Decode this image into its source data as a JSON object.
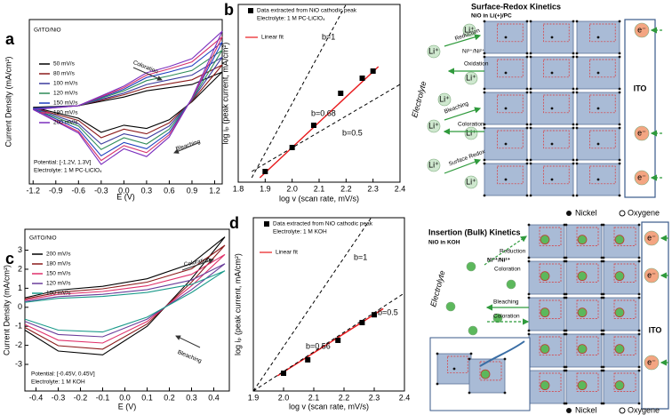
{
  "chart_data": [
    {
      "type": "line",
      "panel_label": "a",
      "xlabel": "E (V)",
      "ylabel": "Current Density (mA/cm²)",
      "xlim": [
        -1.25,
        1.3
      ],
      "xticks": [
        -1.2,
        -0.9,
        -0.6,
        -0.3,
        {
          "value": 0,
          "label": "0.0"
        },
        0.3,
        0.6,
        0.9,
        1.2
      ],
      "ylim": [
        -1,
        1.1
      ],
      "x": [
        -1.2,
        -0.6,
        0,
        0.3,
        0.6,
        0.9,
        1.3,
        0.9,
        0.6,
        0.3,
        0,
        -0.3,
        -0.6,
        -1.2
      ],
      "series": [
        {
          "name": "50 mV/s",
          "color": "#000000",
          "values": [
            -0.02,
            0,
            0.11,
            0.19,
            0.23,
            0.27,
            0.43,
            0.05,
            -0.18,
            -0.29,
            -0.25,
            -0.34,
            -0.16,
            -0.02
          ]
        },
        {
          "name": "80 mV/s",
          "color": "#8b1a1a",
          "values": [
            -0.03,
            0,
            0.14,
            0.23,
            0.28,
            0.33,
            0.52,
            0.06,
            -0.22,
            -0.36,
            -0.3,
            -0.41,
            -0.19,
            -0.03
          ]
        },
        {
          "name": "100 mV/s",
          "color": "#3b3b9e",
          "values": [
            -0.03,
            0,
            0.16,
            0.27,
            0.33,
            0.39,
            0.62,
            0.07,
            -0.26,
            -0.42,
            -0.36,
            -0.49,
            -0.23,
            -0.03
          ]
        },
        {
          "name": "120 mV/s",
          "color": "#2e8b57",
          "values": [
            -0.04,
            0,
            0.19,
            0.32,
            0.38,
            0.45,
            0.71,
            0.08,
            -0.3,
            -0.49,
            -0.41,
            -0.56,
            -0.26,
            -0.04
          ]
        },
        {
          "name": "150 mV/s",
          "color": "#1f3fbf",
          "values": [
            -0.04,
            0,
            0.21,
            0.36,
            0.43,
            0.51,
            0.81,
            0.09,
            -0.34,
            -0.55,
            -0.47,
            -0.64,
            -0.3,
            -0.04
          ]
        },
        {
          "name": "180 mV/s",
          "color": "#d6336c",
          "values": [
            -0.05,
            0,
            0.23,
            0.39,
            0.47,
            0.56,
            0.88,
            0.09,
            -0.37,
            -0.6,
            -0.51,
            -0.7,
            -0.33,
            -0.05
          ]
        },
        {
          "name": "200 mV/s",
          "color": "#7b2fbe",
          "values": [
            -0.05,
            0,
            0.25,
            0.42,
            0.5,
            0.6,
            0.95,
            0.1,
            -0.4,
            -0.65,
            -0.55,
            -0.75,
            -0.35,
            -0.05
          ]
        }
      ],
      "annotations": [
        "G/ITO/NiO",
        "Coloration",
        "Bleaching",
        "Potential: [-1.2V, 1.3V]",
        "Electrolyte: 1 M PC-LiClO₄"
      ]
    },
    {
      "type": "scatter",
      "panel_label": "b",
      "xlabel": "log v (scan rate, mV/s)",
      "ylabel": "log iₚ (peak current, mA/cm²)",
      "xlim": [
        1.8,
        2.4
      ],
      "xticks": [
        1.8,
        1.9,
        {
          "value": 2,
          "label": "2.0"
        },
        2.1,
        2.2,
        2.3,
        2.4
      ],
      "ylim": [
        -0.4,
        0
      ],
      "series": [
        {
          "name": "Data extracted from NiO cathodic peak",
          "color": "#000000",
          "x": [
            1.9,
            2.0,
            2.08,
            2.18,
            2.26,
            2.3
          ],
          "values": [
            -0.376,
            -0.322,
            -0.272,
            -0.2,
            -0.166,
            -0.15
          ]
        }
      ],
      "legend_note": "Electrolyte: 1 M PC-LiClO₄",
      "lines": [
        {
          "label": "b=1",
          "color": "#000000",
          "dashed": true,
          "x": [
            1.85,
            2.2
          ],
          "values": [
            -0.39,
            0
          ]
        },
        {
          "name": "Linear fit",
          "label": "b=0.68",
          "color": "#e8191c",
          "dashed": false,
          "x": [
            1.88,
            2.32
          ],
          "values": [
            -0.39,
            -0.14
          ]
        },
        {
          "label": "b=0.5",
          "color": "#000000",
          "dashed": true,
          "x": [
            1.85,
            2.4
          ],
          "values": [
            -0.376,
            -0.18
          ]
        }
      ]
    },
    {
      "type": "line",
      "panel_label": "c",
      "xlabel": "E (V)",
      "ylabel": "Current Density (mA/cm²)",
      "xlim": [
        -0.45,
        0.47
      ],
      "xticks": [
        -0.4,
        -0.3,
        -0.2,
        -0.1,
        {
          "value": 0,
          "label": "0.0"
        },
        0.1,
        0.2,
        0.3,
        0.4
      ],
      "ylim": [
        -4.4,
        4.1
      ],
      "yticks": [
        -3,
        -2,
        -1,
        0,
        1,
        2,
        3
      ],
      "x": [
        -0.45,
        -0.3,
        -0.1,
        0.1,
        0.3,
        0.45,
        0.3,
        0.1,
        -0.1,
        -0.3,
        -0.45
      ],
      "series": [
        {
          "name": "200 mV/s",
          "color": "#000000",
          "values": [
            0.5,
            0.9,
            1.1,
            1.5,
            2.3,
            3.7,
            1.5,
            -1.0,
            -2.5,
            -2.3,
            -1.2
          ]
        },
        {
          "name": "180 mV/s",
          "color": "#8b1a1a",
          "values": [
            0.44,
            0.79,
            0.97,
            1.32,
            2.02,
            3.26,
            1.32,
            -0.88,
            -2.2,
            -2.02,
            -1.06
          ]
        },
        {
          "name": "150 mV/s",
          "color": "#e0306a",
          "values": [
            0.38,
            0.68,
            0.83,
            1.13,
            1.73,
            2.78,
            1.13,
            -0.75,
            -1.88,
            -1.73,
            -0.9
          ]
        },
        {
          "name": "120 mV/s",
          "color": "#6a3d9a",
          "values": [
            0.31,
            0.56,
            0.68,
            0.93,
            1.43,
            2.29,
            0.93,
            -0.62,
            -1.55,
            -1.43,
            -0.74
          ]
        },
        {
          "name": "100 mV/s",
          "color": "#1a9a8a",
          "values": [
            0.26,
            0.47,
            0.57,
            0.78,
            1.2,
            1.92,
            0.78,
            -0.52,
            -1.3,
            -1.2,
            -0.62
          ]
        }
      ],
      "annotations": [
        "G/ITO/NiO",
        "Coloration",
        "Bleaching",
        "Potential: [-0.45V, 0.45V]",
        "Electrolyte: 1 M KOH"
      ]
    },
    {
      "type": "scatter",
      "panel_label": "d",
      "xlabel": "log v (scan rate, mV/s)",
      "ylabel": "log iₚ (peak current, mA/cm²)",
      "xlim": [
        1.9,
        2.4
      ],
      "xticks": [
        1.9,
        {
          "value": 2,
          "label": "2.0"
        },
        2.1,
        2.2,
        2.3,
        2.4
      ],
      "ylim": [
        -0.4,
        0
      ],
      "series": [
        {
          "name": "Data extracted from NiO cathodic peak",
          "color": "#000000",
          "x": [
            2.0,
            2.08,
            2.18,
            2.26,
            2.3
          ],
          "values": [
            -0.359,
            -0.328,
            -0.283,
            -0.242,
            -0.224
          ]
        }
      ],
      "legend_note": "Electrolyte: 1 M KOH",
      "lines": [
        {
          "label": "b=1",
          "color": "#000000",
          "dashed": true,
          "x": [
            1.9,
            2.29
          ],
          "values": [
            -0.4,
            0
          ]
        },
        {
          "name": "Linear fit",
          "label": "b=0.56",
          "color": "#e8191c",
          "dashed": false,
          "x": [
            1.98,
            2.33
          ],
          "values": [
            -0.365,
            -0.21
          ]
        },
        {
          "label": "b=0.5",
          "color": "#000000",
          "dashed": true,
          "x": [
            1.9,
            2.4
          ],
          "values": [
            -0.4,
            -0.174
          ]
        }
      ]
    }
  ],
  "diagrams": [
    {
      "title": "Surface-Redox Kinetics",
      "subtitle": "NiO in Li(+)/PC",
      "ion": "Li⁺",
      "reduction": "Reduction",
      "couple": "Ni³⁺/Ni²⁺",
      "oxidation": "Oxidation",
      "bleaching": "Bleaching",
      "coloration": "Coloration",
      "surface_redox": "Surface Redox",
      "electrolyte": "Electrolyte",
      "electrode": "ITO",
      "electron": "e⁻",
      "legend": [
        "Nickel",
        "Oxygene"
      ]
    },
    {
      "title": "Insertion (Bulk) Kinetics",
      "subtitle": "NiO in KOH",
      "reduction": "Reduction",
      "couple": "Ni³⁺/Ni²⁺",
      "coloration": "Coloration",
      "bleaching": "Bleaching",
      "electrolyte": "Electrolyte",
      "electrode": "ITO",
      "electron": "e⁻",
      "legend": [
        "Nickel",
        "Oxygene"
      ]
    }
  ]
}
